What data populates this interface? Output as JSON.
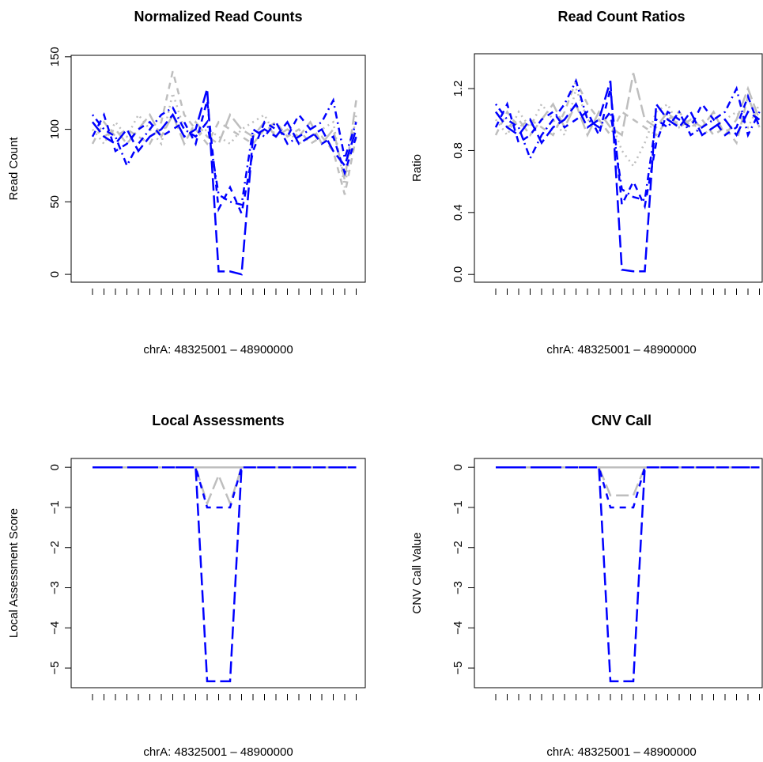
{
  "chart_data": [
    {
      "type": "line",
      "title": "Normalized Read Counts",
      "xlabel": "chrA: 48325001 – 48900000",
      "ylabel": "Read Count",
      "categories": [
        null,
        null,
        null,
        null,
        null,
        null,
        null,
        null,
        null,
        null,
        null,
        null,
        null,
        null,
        null,
        null,
        null,
        null,
        null,
        null,
        null,
        null,
        null,
        null
      ],
      "ylim": [
        -5.4,
        151
      ],
      "yticks": [
        0,
        50,
        100,
        150
      ],
      "series": [
        {
          "color": "#bebebe",
          "linestyle": "dotted",
          "values": [
            100,
            90,
            105,
            95,
            110,
            100,
            90,
            125,
            100,
            95,
            100,
            95,
            90,
            100,
            105,
            110,
            95,
            100,
            90,
            95,
            100,
            105,
            60,
            110
          ]
        },
        {
          "color": "#bebebe",
          "linestyle": "dashed",
          "values": [
            90,
            105,
            95,
            100,
            95,
            90,
            105,
            140,
            110,
            100,
            90,
            105,
            100,
            95,
            90,
            100,
            105,
            95,
            100,
            90,
            95,
            85,
            55,
            95
          ]
        },
        {
          "color": "#bebebe",
          "linestyle": "longdash",
          "values": [
            105,
            95,
            100,
            90,
            100,
            110,
            95,
            110,
            90,
            105,
            95,
            90,
            110,
            100,
            95,
            105,
            95,
            100,
            95,
            105,
            90,
            100,
            65,
            120
          ]
        },
        {
          "color": "#0000ff",
          "linestyle": "longdash",
          "values": [
            105,
            95,
            90,
            100,
            85,
            95,
            100,
            110,
            95,
            100,
            128,
            2,
            2,
            0,
            95,
            100,
            95,
            105,
            90,
            95,
            100,
            85,
            75,
            100
          ]
        },
        {
          "color": "#0000ff",
          "linestyle": "dashed",
          "values": [
            95,
            110,
            85,
            90,
            100,
            105,
            95,
            100,
            105,
            90,
            120,
            45,
            60,
            42,
            85,
            105,
            100,
            95,
            110,
            100,
            90,
            95,
            70,
            95
          ]
        },
        {
          "color": "#0000ff",
          "linestyle": "dotdash",
          "values": [
            110,
            100,
            95,
            75,
            90,
            100,
            110,
            115,
            100,
            95,
            105,
            55,
            50,
            48,
            100,
            95,
            105,
            90,
            95,
            100,
            105,
            120,
            80,
            105
          ]
        }
      ]
    },
    {
      "type": "line",
      "title": "Read Count Ratios",
      "xlabel": "chrA: 48325001 – 48900000",
      "ylabel": "Ratio",
      "categories": [
        null,
        null,
        null,
        null,
        null,
        null,
        null,
        null,
        null,
        null,
        null,
        null,
        null,
        null,
        null,
        null,
        null,
        null,
        null,
        null,
        null,
        null,
        null,
        null
      ],
      "ylim": [
        -0.05,
        1.425
      ],
      "yticks": [
        {
          "value": 0,
          "label": "0.0"
        },
        0.4,
        0.8,
        1.2
      ],
      "series": [
        {
          "color": "#bebebe",
          "linestyle": "dotted",
          "values": [
            1.0,
            0.9,
            1.05,
            0.95,
            1.1,
            1.0,
            0.9,
            1.2,
            1.0,
            0.95,
            1.0,
            0.8,
            0.7,
            0.85,
            1.05,
            1.1,
            0.95,
            1.0,
            0.9,
            0.95,
            1.0,
            1.05,
            0.95,
            1.1
          ]
        },
        {
          "color": "#bebebe",
          "linestyle": "dashed",
          "values": [
            0.9,
            1.05,
            0.95,
            1.0,
            0.95,
            0.9,
            1.05,
            1.25,
            1.1,
            1.0,
            0.9,
            1.05,
            1.0,
            0.95,
            0.9,
            1.0,
            1.05,
            0.95,
            1.0,
            0.9,
            0.95,
            0.85,
            1.15,
            0.95
          ]
        },
        {
          "color": "#bebebe",
          "linestyle": "longdash",
          "values": [
            1.05,
            0.95,
            1.0,
            0.9,
            1.0,
            1.1,
            0.95,
            1.1,
            0.9,
            1.05,
            0.95,
            0.9,
            1.3,
            1.0,
            0.95,
            1.05,
            0.95,
            1.0,
            0.95,
            1.05,
            0.9,
            1.0,
            1.2,
            1.0
          ]
        },
        {
          "color": "#0000ff",
          "linestyle": "longdash",
          "values": [
            1.05,
            0.95,
            0.9,
            1.0,
            0.85,
            0.95,
            1.0,
            1.1,
            0.95,
            1.0,
            1.25,
            0.03,
            0.02,
            0.02,
            1.1,
            1.0,
            0.95,
            1.05,
            0.9,
            0.95,
            1.0,
            0.9,
            1.05,
            1.0
          ]
        },
        {
          "color": "#0000ff",
          "linestyle": "dashed",
          "values": [
            0.95,
            1.1,
            0.85,
            0.9,
            1.0,
            1.05,
            0.95,
            1.0,
            1.05,
            0.9,
            1.2,
            0.45,
            0.6,
            0.44,
            0.85,
            1.05,
            1.0,
            0.95,
            1.1,
            1.0,
            0.9,
            0.95,
            1.15,
            0.95
          ]
        },
        {
          "color": "#0000ff",
          "linestyle": "dotdash",
          "values": [
            1.1,
            1.0,
            0.95,
            0.75,
            0.9,
            1.0,
            1.1,
            1.25,
            1.0,
            0.95,
            1.05,
            0.55,
            0.5,
            0.48,
            1.0,
            0.95,
            1.05,
            0.9,
            0.95,
            1.0,
            1.05,
            1.2,
            0.9,
            1.05
          ]
        }
      ]
    },
    {
      "type": "line",
      "title": "Local Assessments",
      "xlabel": "chrA: 48325001 – 48900000",
      "ylabel": "Local Assessment Score",
      "categories": [
        null,
        null,
        null,
        null,
        null,
        null,
        null,
        null,
        null,
        null,
        null,
        null,
        null,
        null,
        null,
        null,
        null,
        null,
        null,
        null,
        null,
        null,
        null,
        null
      ],
      "ylim": [
        -5.49,
        0.22
      ],
      "yticks": [
        0,
        {
          "value": -1,
          "label": "−1"
        },
        {
          "value": -2,
          "label": "−2"
        },
        {
          "value": -3,
          "label": "−3"
        },
        {
          "value": -4,
          "label": "−4"
        },
        {
          "value": -5,
          "label": "−5"
        }
      ],
      "series": [
        {
          "color": "#bebebe",
          "linestyle": "solid",
          "values": [
            0,
            0,
            0,
            0,
            0,
            0,
            0,
            0,
            0,
            0,
            0,
            0,
            0,
            0,
            0,
            0,
            0,
            0,
            0,
            0,
            0,
            0,
            0,
            0
          ]
        },
        {
          "color": "#bebebe",
          "linestyle": "longdash",
          "values": [
            0,
            0,
            0,
            0,
            0,
            0,
            0,
            0,
            0,
            0,
            -0.9,
            -0.2,
            -0.9,
            0,
            0,
            0,
            0,
            0,
            0,
            0,
            0,
            0,
            0,
            0
          ]
        },
        {
          "color": "#0000ff",
          "linestyle": "longdash",
          "values": [
            0,
            0,
            0,
            0,
            0,
            0,
            0,
            0,
            0,
            0,
            -5.33,
            -5.33,
            -5.33,
            0,
            0,
            0,
            0,
            0,
            0,
            0,
            0,
            0,
            0,
            0
          ]
        },
        {
          "color": "#0000ff",
          "linestyle": "dashed",
          "values": [
            0,
            0,
            0,
            0,
            0,
            0,
            0,
            0,
            0,
            0,
            -1,
            -1,
            -1,
            0,
            0,
            0,
            0,
            0,
            0,
            0,
            0,
            0,
            0,
            0
          ]
        }
      ]
    },
    {
      "type": "line",
      "title": "CNV Call",
      "xlabel": "chrA: 48325001 – 48900000",
      "ylabel": "CNV Call Value",
      "categories": [
        null,
        null,
        null,
        null,
        null,
        null,
        null,
        null,
        null,
        null,
        null,
        null,
        null,
        null,
        null,
        null,
        null,
        null,
        null,
        null,
        null,
        null,
        null,
        null
      ],
      "ylim": [
        -5.49,
        0.22
      ],
      "yticks": [
        0,
        {
          "value": -1,
          "label": "−1"
        },
        {
          "value": -2,
          "label": "−2"
        },
        {
          "value": -3,
          "label": "−3"
        },
        {
          "value": -4,
          "label": "−4"
        },
        {
          "value": -5,
          "label": "−5"
        }
      ],
      "series": [
        {
          "color": "#bebebe",
          "linestyle": "solid",
          "values": [
            0,
            0,
            0,
            0,
            0,
            0,
            0,
            0,
            0,
            0,
            0,
            0,
            0,
            0,
            0,
            0,
            0,
            0,
            0,
            0,
            0,
            0,
            0,
            0
          ]
        },
        {
          "color": "#bebebe",
          "linestyle": "longdash",
          "values": [
            0,
            0,
            0,
            0,
            0,
            0,
            0,
            0,
            0,
            0,
            -0.7,
            -0.7,
            -0.7,
            0,
            0,
            0,
            0,
            0,
            0,
            0,
            0,
            0,
            0,
            0
          ]
        },
        {
          "color": "#0000ff",
          "linestyle": "longdash",
          "values": [
            0,
            0,
            0,
            0,
            0,
            0,
            0,
            0,
            0,
            0,
            -5.33,
            -5.33,
            -5.33,
            0,
            0,
            0,
            0,
            0,
            0,
            0,
            0,
            0,
            0,
            0
          ]
        },
        {
          "color": "#0000ff",
          "linestyle": "dashed",
          "values": [
            0,
            0,
            0,
            0,
            0,
            0,
            0,
            0,
            0,
            0,
            -1,
            -1,
            -1,
            0,
            0,
            0,
            0,
            0,
            0,
            0,
            0,
            0,
            0,
            0
          ]
        }
      ]
    }
  ]
}
